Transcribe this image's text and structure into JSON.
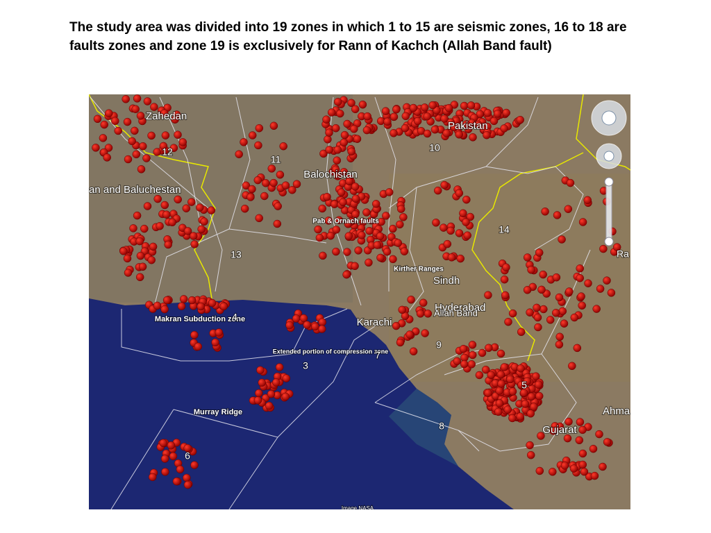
{
  "header": {
    "title": "The study area was divided into 19 zones in which 1 to 15 are seismic zones, 16 to 18 are faults zones and zone 19 is exclusively for Rann of Kachch (Allah Band fault)"
  },
  "map": {
    "labels": [
      "Zahedan",
      "Pakistan",
      "12",
      "11",
      "10",
      "Balochistan",
      "an and Baluchestan",
      "Pab & Ornach faults",
      "14",
      "13",
      "Ra",
      "Kirther Ranges",
      "Sindh",
      "Hyderabad",
      "Allah Band",
      "Makran Subduction zone",
      "4",
      "Karachi",
      "9",
      "Extended portion of compression zone",
      "7",
      "3",
      "5",
      "Ahma",
      "Murray Ridge",
      "8",
      "Gujarat",
      "6",
      "Image NASA"
    ]
  }
}
